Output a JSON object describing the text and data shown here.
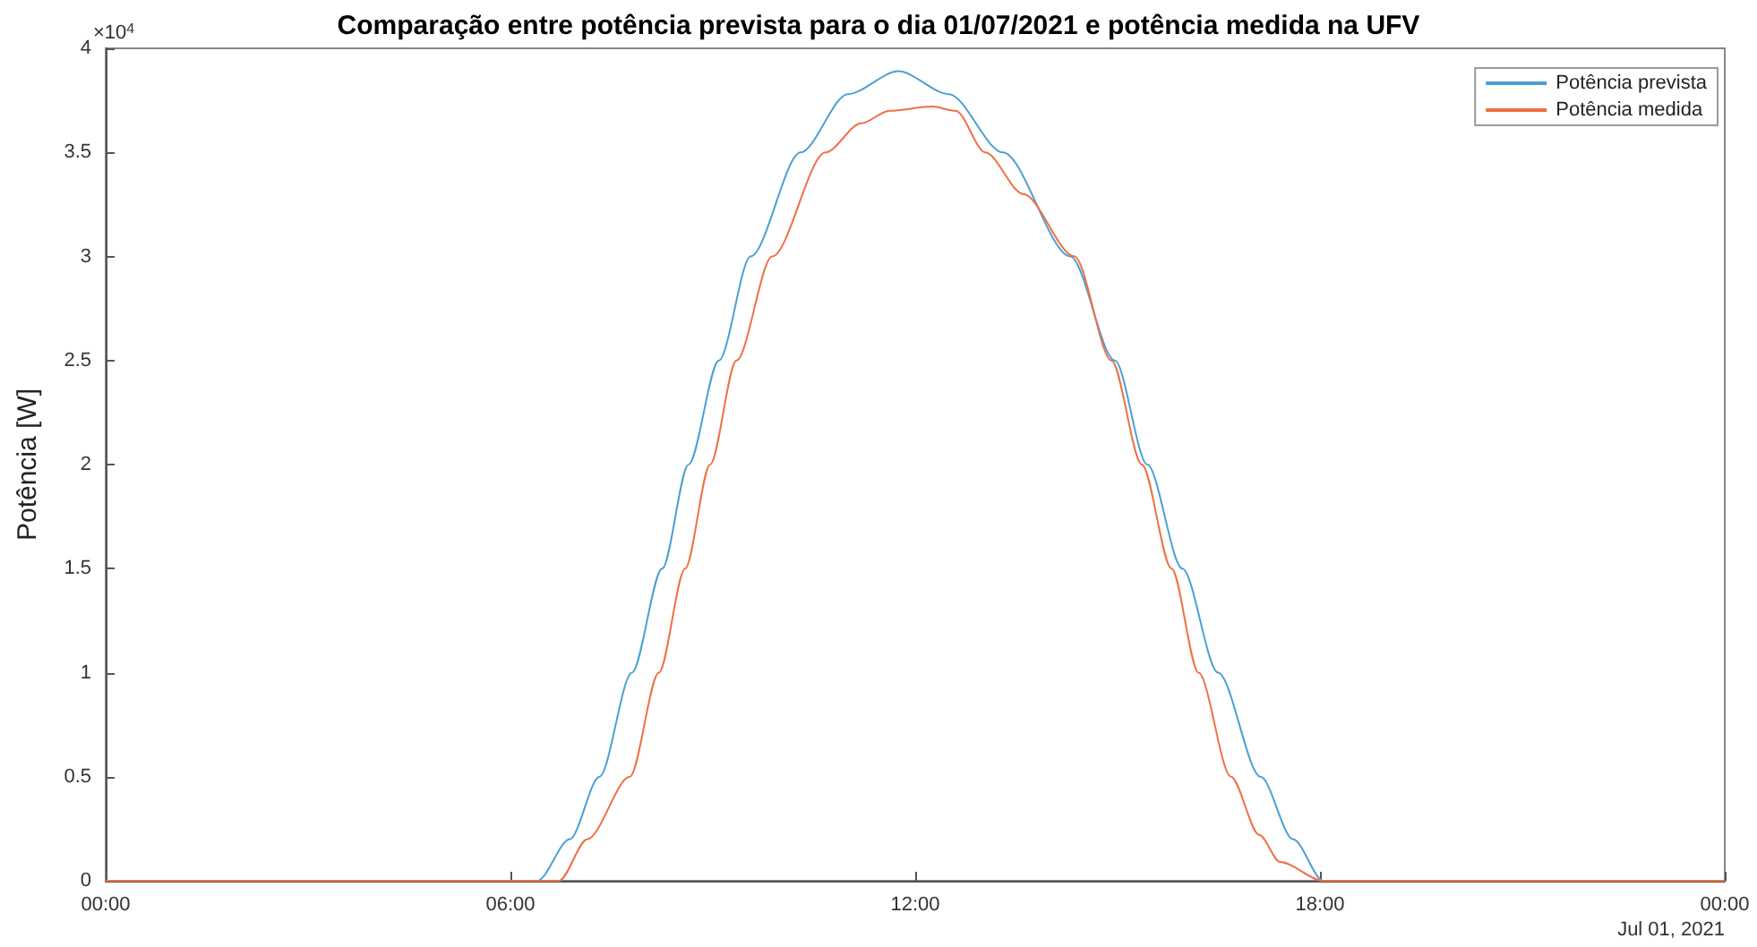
{
  "chart_data": {
    "type": "line",
    "title": "Comparação entre potência prevista para o dia 01/07/2021 e potência medida na UFV",
    "ylabel": "Potência [W]",
    "annotations": [
      "×10$^{4}$",
      "Jul 01, 2021"
    ],
    "xlim": [
      0,
      24
    ],
    "xticks": [
      {
        "value": 0,
        "label": "00:00"
      },
      {
        "value": 6,
        "label": "06:00"
      },
      {
        "value": 12,
        "label": "12:00"
      },
      {
        "value": 18,
        "label": "18:00"
      },
      {
        "value": 24,
        "label": "00:00"
      }
    ],
    "ylim": [
      0,
      4
    ],
    "yticks": [
      0,
      0.5,
      1,
      1.5,
      2,
      2.5,
      3,
      3.5,
      4
    ],
    "grid": false,
    "legend": "top right",
    "marker": "none",
    "line_style": "solid",
    "series": [
      {
        "name": "Potência prevista",
        "color": "#4b9fd5",
        "x": [
          0,
          6.4,
          6.88,
          7.32,
          7.8,
          8.25,
          8.64,
          9.09,
          9.56,
          10.3,
          11.0,
          11.75,
          12.5,
          13.3,
          14.3,
          14.96,
          15.44,
          15.96,
          16.49,
          17.12,
          17.6,
          18.05,
          24
        ],
        "values": [
          0,
          0,
          0.2,
          0.5,
          1.0,
          1.5,
          2.0,
          2.5,
          3.0,
          3.5,
          3.78,
          3.89,
          3.78,
          3.5,
          3.0,
          2.5,
          2.0,
          1.5,
          1.0,
          0.5,
          0.2,
          0,
          0
        ]
      },
      {
        "name": "Potência medida",
        "color": "#ee7044",
        "x": [
          0,
          6.72,
          7.14,
          7.77,
          8.2,
          8.59,
          8.96,
          9.35,
          9.88,
          10.67,
          11.2,
          11.62,
          12.25,
          12.6,
          13.04,
          13.6,
          14.36,
          14.91,
          15.36,
          15.8,
          16.2,
          16.68,
          17.1,
          17.41,
          18.05,
          24
        ],
        "values": [
          0,
          0,
          0.2,
          0.5,
          1.0,
          1.5,
          2.0,
          2.5,
          3.0,
          3.5,
          3.64,
          3.7,
          3.72,
          3.7,
          3.5,
          3.3,
          3.0,
          2.5,
          2.0,
          1.5,
          1.0,
          0.5,
          0.22,
          0.09,
          0,
          0
        ]
      }
    ]
  }
}
